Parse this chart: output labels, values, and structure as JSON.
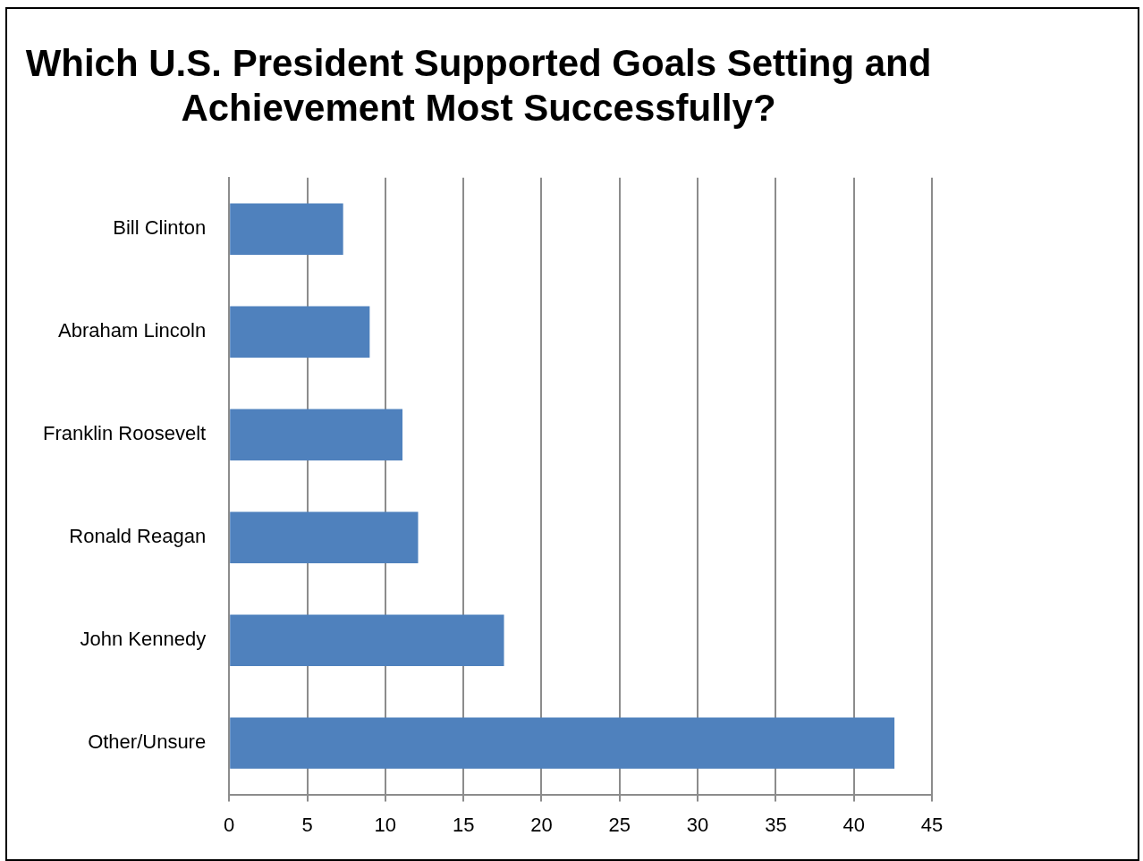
{
  "chart_data": {
    "type": "bar",
    "orientation": "horizontal",
    "title": "Which U.S. President Supported Goals Setting and Achievement Most Successfully?",
    "categories": [
      "Bill Clinton",
      "Abraham Lincoln",
      "Franklin Roosevelt",
      "Ronald Reagan",
      "John Kennedy",
      "Other/Unsure"
    ],
    "values": [
      7.3,
      9.0,
      11.1,
      12.1,
      17.6,
      42.6
    ],
    "color": "#4f81bd",
    "xlim": [
      0,
      45
    ],
    "xticks": [
      0,
      5,
      10,
      15,
      20,
      25,
      30,
      35,
      40,
      45
    ],
    "grid": "x",
    "legend": false
  }
}
